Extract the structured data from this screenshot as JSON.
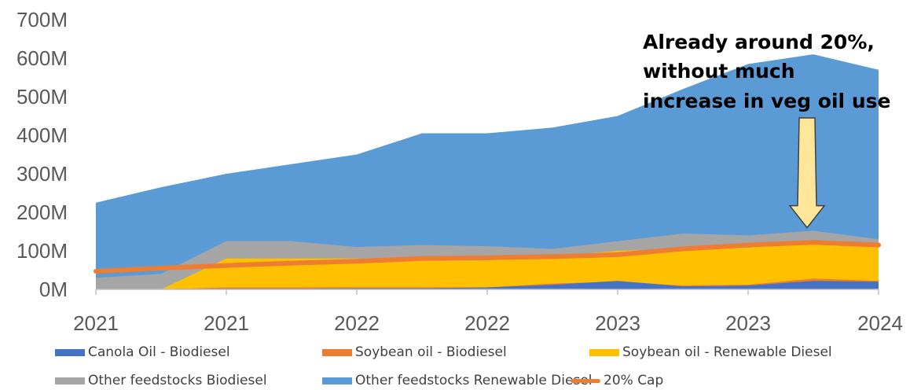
{
  "chart_data": {
    "type": "area",
    "x": [
      "2021-01",
      "2021-04",
      "2021-07",
      "2021-10",
      "2022-01",
      "2022-04",
      "2022-07",
      "2022-10",
      "2023-01",
      "2023-04",
      "2023-07",
      "2023-10",
      "2024-01"
    ],
    "x_tick_labels": [
      "2021",
      "2021",
      "2022",
      "2022",
      "2023",
      "2023",
      "2024"
    ],
    "y_tick_labels": [
      "0M",
      "100M",
      "200M",
      "300M",
      "400M",
      "500M",
      "600M",
      "700M"
    ],
    "ylim": [
      0,
      700
    ],
    "y_unit": "M",
    "stacked": false,
    "series": [
      {
        "name": "Other feedstocks Renewable Diesel",
        "kind": "area",
        "color": "#5b9bd5",
        "values": [
          225,
          265,
          300,
          325,
          350,
          405,
          405,
          420,
          450,
          520,
          585,
          610,
          570
        ]
      },
      {
        "name": "Other feedstocks Biodiesel",
        "kind": "area",
        "color": "#a5a5a5",
        "values": [
          30,
          40,
          125,
          125,
          110,
          115,
          112,
          105,
          125,
          145,
          140,
          152,
          130
        ]
      },
      {
        "name": "Soybean oil - Renewable Diesel",
        "kind": "area",
        "color": "#ffc000",
        "values": [
          0,
          0,
          80,
          80,
          80,
          75,
          75,
          85,
          100,
          105,
          108,
          125,
          110
        ]
      },
      {
        "name": "Soybean oil - Biodiesel",
        "kind": "area",
        "color": "#ed7d31",
        "values": [
          0,
          0,
          5,
          5,
          5,
          5,
          5,
          15,
          20,
          10,
          12,
          28,
          22
        ]
      },
      {
        "name": "Canola Oil - Biodiesel",
        "kind": "area",
        "color": "#4472c4",
        "values": [
          0,
          0,
          2,
          2,
          3,
          3,
          5,
          12,
          22,
          8,
          10,
          22,
          20
        ]
      },
      {
        "name": "20% Cap",
        "kind": "line",
        "color": "#ed7d31",
        "values": [
          47,
          55,
          62,
          68,
          73,
          80,
          82,
          85,
          90,
          105,
          115,
          122,
          115
        ]
      }
    ],
    "legend_order": [
      "Canola Oil - Biodiesel",
      "Soybean oil - Biodiesel",
      "Soybean oil - Renewable Diesel",
      "Other feedstocks Biodiesel",
      "Other feedstocks Renewable Diesel",
      "20% Cap"
    ],
    "legend_position": "bottom",
    "grid": false,
    "annotation": {
      "lines": [
        "Already around 20%,",
        "without much",
        "increase in veg oil use"
      ],
      "arrow_color": "#ffe699",
      "arrow_x": "2023-10",
      "arrow_tip_y": 160
    }
  }
}
